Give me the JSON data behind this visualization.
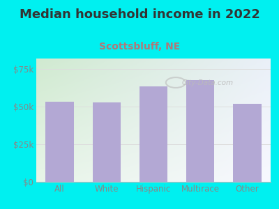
{
  "title": "Median household income in 2022",
  "subtitle": "Scottsbluff, NE",
  "categories": [
    "All",
    "White",
    "Hispanic",
    "Multirace",
    "Other"
  ],
  "values": [
    53500,
    53000,
    63500,
    67500,
    52000
  ],
  "bar_color": "#b3a8d4",
  "background_color": "#00f0f0",
  "chart_bg_top_left": "#d0ead0",
  "chart_bg_top_right": "#eaf0f8",
  "chart_bg_bottom_left": "#e8f5e8",
  "chart_bg_bottom_right": "#f8f8ff",
  "title_fontsize": 13,
  "subtitle_fontsize": 10,
  "subtitle_color": "#b07878",
  "title_color": "#333333",
  "tick_color": "#888888",
  "yticks": [
    0,
    25000,
    50000,
    75000
  ],
  "ytick_labels": [
    "$0",
    "$25k",
    "$50k",
    "$75k"
  ],
  "ylim": [
    0,
    82000
  ],
  "watermark": "City-Data.com",
  "grid_color": "#dddddd"
}
